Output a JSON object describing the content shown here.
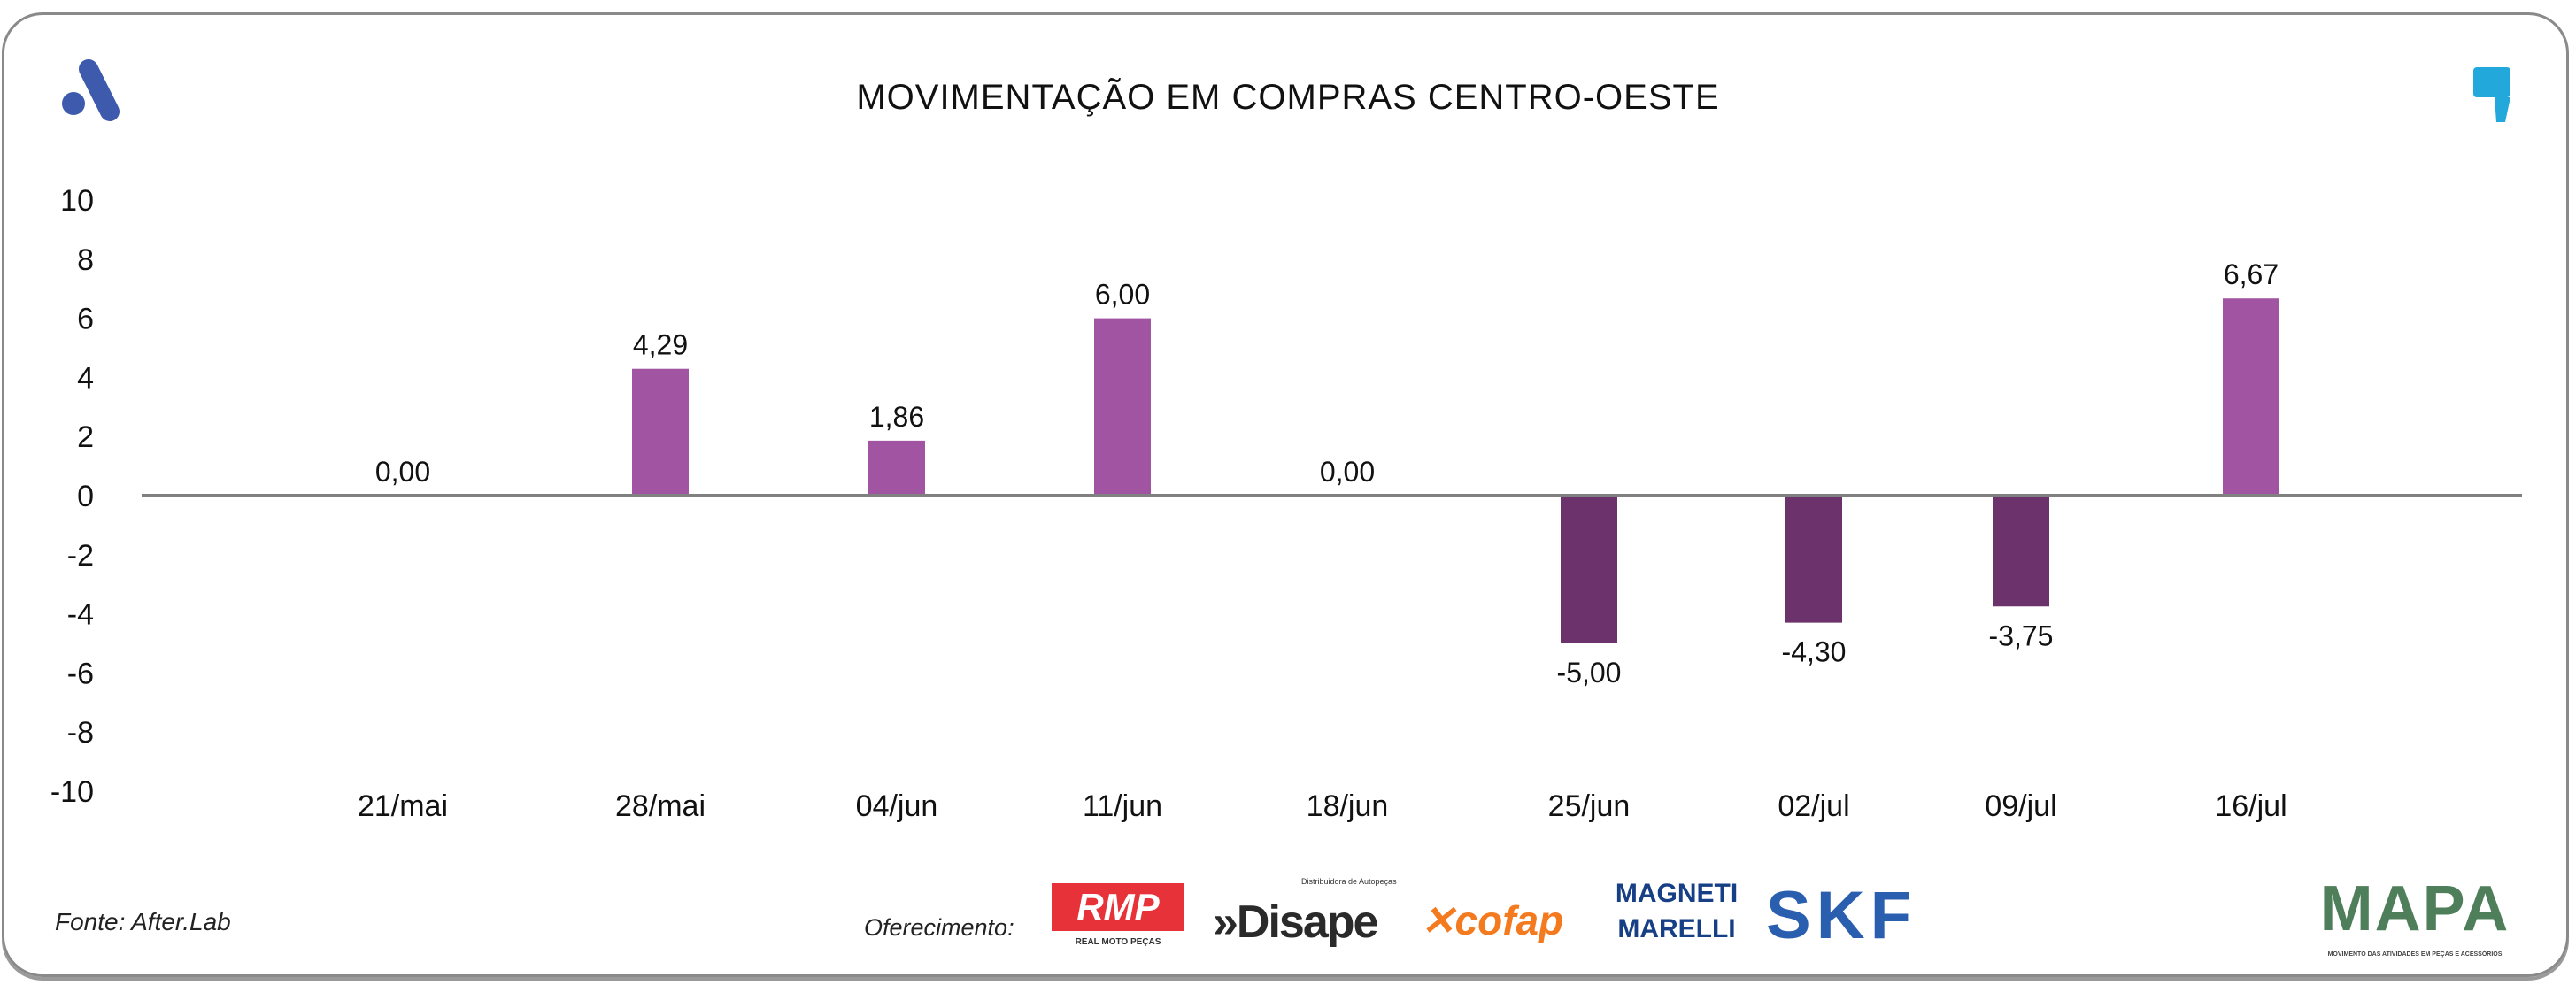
{
  "chart_data": {
    "type": "bar",
    "title": "MOVIMENTAÇÃO EM COMPRAS CENTRO-OESTE",
    "categories": [
      "21/mai",
      "28/mai",
      "04/jun",
      "11/jun",
      "18/jun",
      "25/jun",
      "02/jul",
      "09/jul",
      "16/jul"
    ],
    "values": [
      0.0,
      4.29,
      1.86,
      6.0,
      0.0,
      -5.0,
      -4.3,
      -3.75,
      6.67
    ],
    "data_labels": [
      "0,00",
      "4,29",
      "1,86",
      "6,00",
      "0,00",
      "-5,00",
      "-4,30",
      "-3,75",
      "6,67"
    ],
    "ylim": [
      -10,
      10
    ],
    "yticks": [
      "10",
      "8",
      "6",
      "4",
      "2",
      "0",
      "-2",
      "-4",
      "-6",
      "-8",
      "-10"
    ],
    "grid": false,
    "legend": "none",
    "colors": {
      "positive": "#a054a2",
      "negative": "#6b326b",
      "axis": "#808080"
    }
  },
  "footer": {
    "source": "Fonte: After.Lab",
    "sponsor_label": "Oferecimento:",
    "sponsors": [
      "RMP",
      "Disape",
      "cofap",
      "MAGNETI MARELLI",
      "SKF"
    ],
    "rmp_sub": "REAL MOTO PEÇAS",
    "disape_sub": "Distribuidora de Autopeças",
    "mapa": "MAPA",
    "mapa_sub": "MOVIMENTO DAS ATIVIDADES EM PEÇAS E ACESSÓRIOS"
  }
}
